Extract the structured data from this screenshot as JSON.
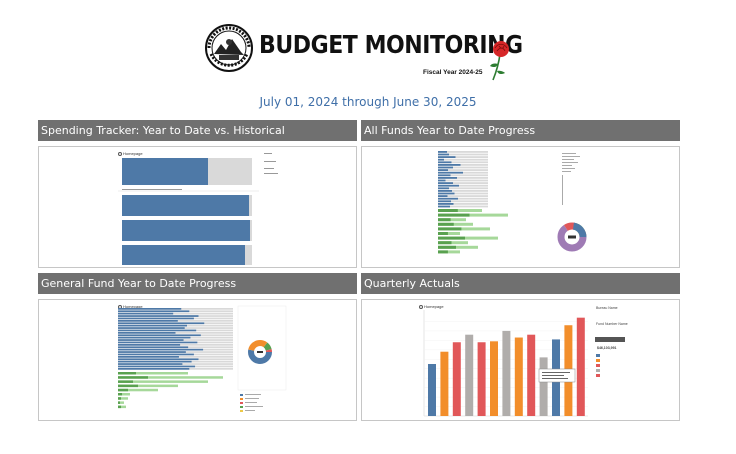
{
  "header": {
    "title": "BUDGET MONITORING",
    "fiscal_year": "Fiscal Year 2024-25",
    "seal_icon": "city-of-portland-seal-icon",
    "rose_icon": "rose-icon",
    "date_range": "July 01, 2024 through June 30, 2025"
  },
  "panels": {
    "spending": {
      "title": "Spending Tracker: Year to Date vs. Historical",
      "homepage": "Homepage"
    },
    "all_funds": {
      "title": "All Funds Year to Date Progress"
    },
    "general_fund": {
      "title": "General Fund Year to Date Progress",
      "homepage": "Homepage"
    },
    "quarterly": {
      "title": "Quarterly Actuals",
      "homepage": "Homepage",
      "bureau_name": "Bureau Name",
      "fund_number_name": "Fund Number Name",
      "total": "$46,103,991"
    }
  },
  "colors": {
    "accent_blue": "#3f6fa8",
    "bar_blue": "#4e79a7",
    "bar_orange": "#f28e2b",
    "bar_red": "#e15759",
    "bar_gray": "#b0adab",
    "bar_green": "#a6d89a",
    "bar_darkgreen": "#59a14f",
    "header_gray": "#707070"
  },
  "chart_data": [
    {
      "type": "bar",
      "title": "Quarterly Actuals",
      "series": [
        {
          "values": [
            55,
            68,
            78,
            86,
            78,
            79,
            90,
            83,
            86,
            62,
            81,
            96,
            104
          ]
        }
      ],
      "bar_colors": [
        "#4e79a7",
        "#f28e2b",
        "#e15759",
        "#b0adab",
        "#e15759",
        "#f28e2b",
        "#b0adab",
        "#f28e2b",
        "#e15759",
        "#b0adab",
        "#4e79a7",
        "#f28e2b",
        "#e15759"
      ]
    }
  ]
}
